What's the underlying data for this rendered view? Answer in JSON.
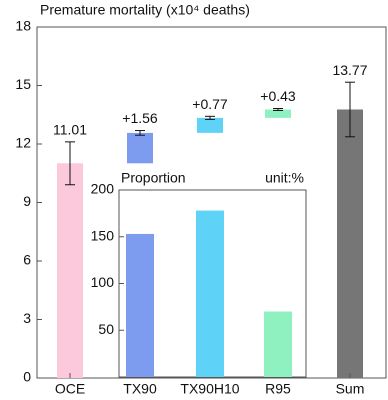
{
  "chart_data": [
    {
      "type": "waterfall",
      "title": "Premature mortality (x10⁴ deaths)",
      "categories": [
        "OCE",
        "TX90",
        "TX90H10",
        "R95",
        "Sum"
      ],
      "values": [
        11.01,
        1.56,
        0.77,
        0.43,
        13.77
      ],
      "value_labels": [
        "11.01",
        "+1.56",
        "+0.77",
        "+0.43",
        "13.77"
      ],
      "measure": [
        "absolute",
        "relative",
        "relative",
        "relative",
        "total"
      ],
      "errors": [
        1.1,
        0.12,
        0.08,
        0.05,
        1.4
      ],
      "colors": [
        "#fbc8dc",
        "#7d9cf0",
        "#5ed3f7",
        "#8ff0c0",
        "#767676"
      ],
      "ylim": [
        0,
        18
      ],
      "yticks": [
        0,
        3,
        6,
        9,
        12,
        15,
        18
      ]
    },
    {
      "type": "bar",
      "title": "Proportion",
      "annotation": "unit:%",
      "values": [
        153,
        178,
        70
      ],
      "colors": [
        "#7d9cf0",
        "#5ed3f7",
        "#8ff0c0"
      ],
      "ylim": [
        0,
        200
      ],
      "yticks": [
        50,
        100,
        150,
        200
      ]
    }
  ]
}
